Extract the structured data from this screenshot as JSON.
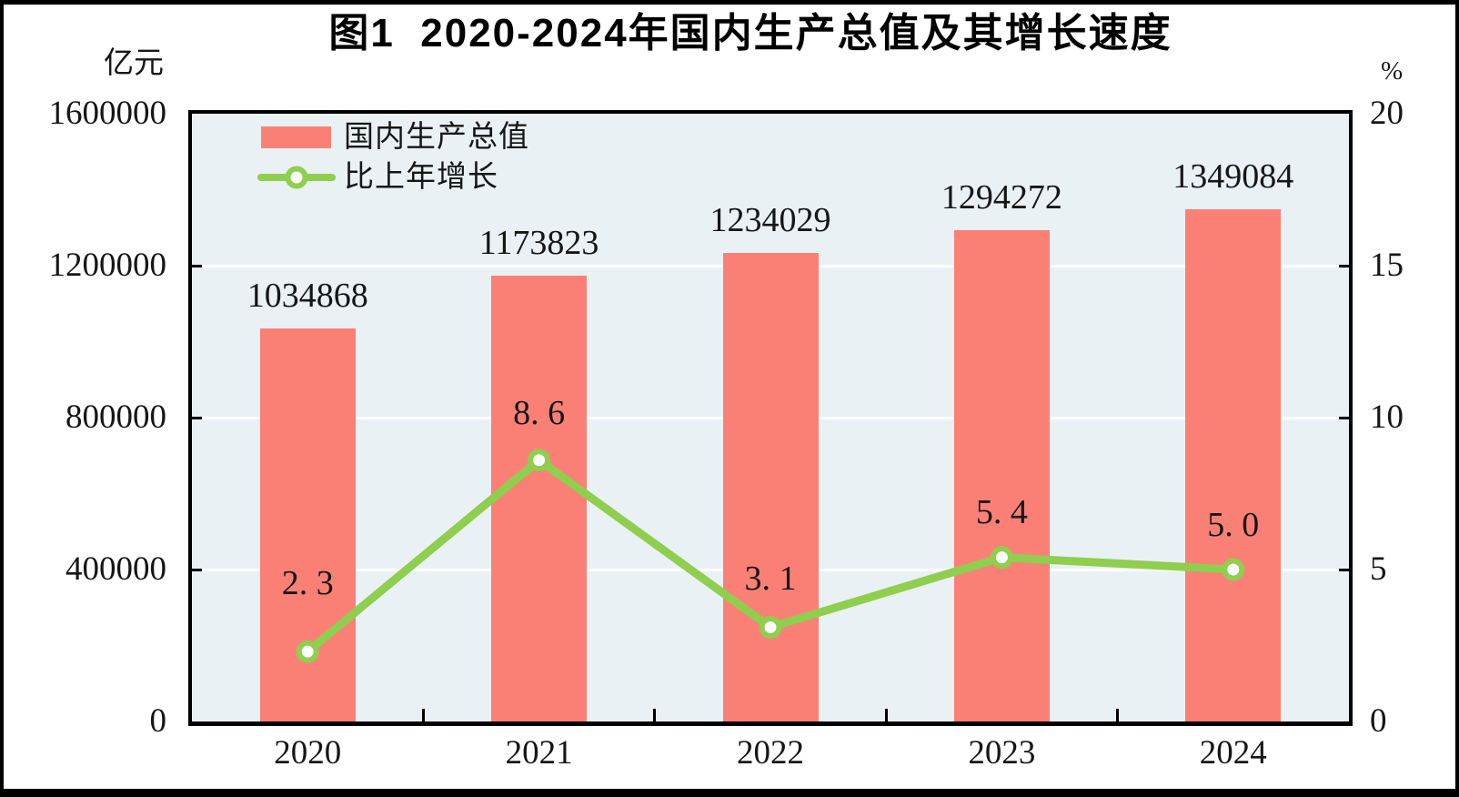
{
  "page": {
    "background": "#ffffff",
    "frame_color": "#000000"
  },
  "chart_data": {
    "type": "bar+line",
    "title": "图1  2020-2024年国内生产总值及其增长速度",
    "categories": [
      "2020",
      "2021",
      "2022",
      "2023",
      "2024"
    ],
    "series": [
      {
        "name": "国内生产总值",
        "type": "bar",
        "axis": "left",
        "color": "#fa8076",
        "values": [
          1034868,
          1173823,
          1234029,
          1294272,
          1349084
        ],
        "value_labels": [
          "1034868",
          "1173823",
          "1234029",
          "1294272",
          "1349084"
        ]
      },
      {
        "name": "比上年增长",
        "type": "line",
        "axis": "right",
        "color": "#8fce4e",
        "marker": "circle-white-fill",
        "values": [
          2.3,
          8.6,
          3.1,
          5.4,
          5.0
        ],
        "value_labels": [
          "2. 3",
          "8. 6",
          "3. 1",
          "5. 4",
          "5. 0"
        ]
      }
    ],
    "left_axis": {
      "unit": "亿元",
      "min": 0,
      "max": 1600000,
      "tick_labels": [
        "1600000",
        "1200000",
        "800000",
        "400000",
        "0"
      ]
    },
    "right_axis": {
      "unit": "%",
      "min": 0,
      "max": 20,
      "tick_labels": [
        "20",
        "15",
        "10",
        "5",
        "0"
      ]
    },
    "plot": {
      "background": "#e9f1f5",
      "gridline_color": "#ffffff",
      "border_color": "#000000",
      "grid": "horizontal"
    },
    "legend_position": "top-left"
  }
}
